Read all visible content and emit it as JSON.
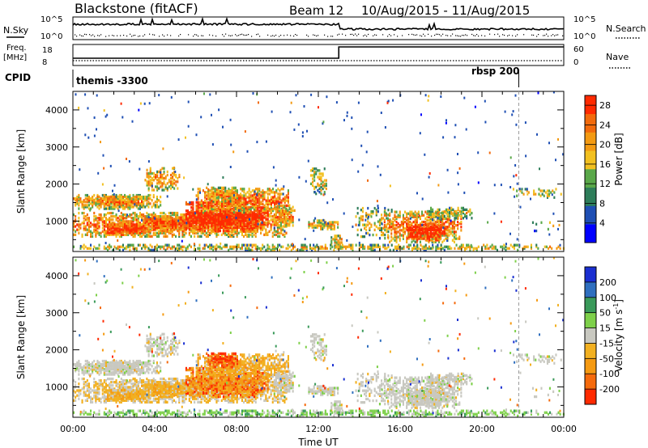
{
  "header": {
    "station": "Blackstone (fitACF)",
    "beam": "Beam 12",
    "dates": "10/Aug/2015 - 11/Aug/2015"
  },
  "status_panels": {
    "nsky_label": "N.Sky",
    "nsky_ticks": [
      "10^5",
      "10^0"
    ],
    "nsearch_label": "N.Search",
    "nsearch_ticks": [
      "10^5",
      "10^0"
    ],
    "freq_label": "Freq.",
    "freq_unit": "[MHz]",
    "freq_ticks": [
      "18",
      "8"
    ],
    "nave_label": "Nave",
    "nave_ticks": [
      "60",
      "0"
    ],
    "freq_step_time": 13.0,
    "cpid_label": "CPID",
    "cpid_segments": [
      {
        "label": "themis -3300"
      },
      {
        "label": "rbsp 200",
        "start": 21.8
      }
    ]
  },
  "chart_data": [
    {
      "type": "heatmap",
      "name": "power",
      "xlabel": "Time UT",
      "ylabel": "Slant Range [km]",
      "colorbar_label": "Power [dB]",
      "x_ticks": [
        "00:00",
        "04:00",
        "08:00",
        "12:00",
        "16:00",
        "20:00",
        "00:00"
      ],
      "y_ticks": [
        1000,
        2000,
        3000,
        4000
      ],
      "xlim": [
        0,
        24
      ],
      "ylim": [
        180,
        4500
      ],
      "colorbar_ticks": [
        4,
        8,
        12,
        16,
        20,
        24,
        28
      ],
      "colorbar_range": [
        0,
        30
      ],
      "colors": [
        "#0000ff",
        "#1f4fb4",
        "#2e7d5a",
        "#5aa84a",
        "#f2c020",
        "#f39a12",
        "#f26a0c",
        "#ff2a00"
      ],
      "dashed_line_time": 21.8
    },
    {
      "type": "heatmap",
      "name": "velocity",
      "xlabel": "Time UT",
      "ylabel": "Slant Range [km]",
      "colorbar_label": "Velocity [m s^-1]",
      "x_ticks": [
        "00:00",
        "04:00",
        "08:00",
        "12:00",
        "16:00",
        "20:00",
        "00:00"
      ],
      "y_ticks": [
        1000,
        2000,
        3000,
        4000
      ],
      "xlim": [
        0,
        24
      ],
      "ylim": [
        180,
        4500
      ],
      "colorbar_ticks": [
        "200",
        "100",
        "50",
        "15",
        "-15",
        "-50",
        "-100",
        "-200"
      ],
      "colors": [
        "#1a2fd1",
        "#2f6fbf",
        "#3a9a5a",
        "#7ed04a",
        "#c8c8c0",
        "#f2b020",
        "#f59a12",
        "#f56a0c",
        "#ff2a00"
      ],
      "dashed_line_time": 21.8
    }
  ]
}
